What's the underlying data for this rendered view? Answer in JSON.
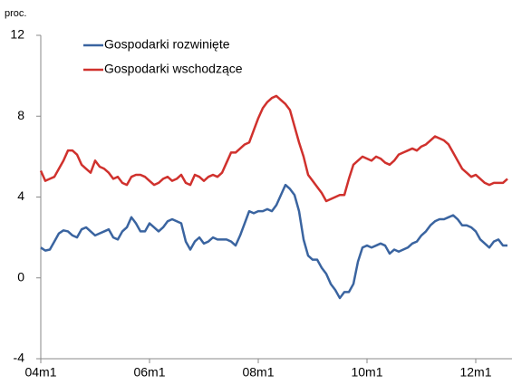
{
  "chart_data": {
    "type": "line",
    "y_unit_label": "proc.",
    "categories": [
      "04m1",
      null,
      null,
      null,
      null,
      null,
      null,
      null,
      null,
      null,
      null,
      null,
      null,
      null,
      null,
      null,
      null,
      null,
      null,
      null,
      null,
      null,
      null,
      null,
      "06m1",
      null,
      null,
      null,
      null,
      null,
      null,
      null,
      null,
      null,
      null,
      null,
      null,
      null,
      null,
      null,
      null,
      null,
      null,
      null,
      null,
      null,
      null,
      null,
      "08m1",
      null,
      null,
      null,
      null,
      null,
      null,
      null,
      null,
      null,
      null,
      null,
      null,
      null,
      null,
      null,
      null,
      null,
      null,
      null,
      null,
      null,
      null,
      null,
      "10m1",
      null,
      null,
      null,
      null,
      null,
      null,
      null,
      null,
      null,
      null,
      null,
      null,
      null,
      null,
      null,
      null,
      null,
      null,
      null,
      null,
      null,
      null,
      null,
      "12m1",
      null,
      null,
      null,
      null,
      null,
      null,
      null
    ],
    "series": [
      {
        "name": "Gospodarki rozwinięte",
        "color": "#3a64a0",
        "values": [
          1.5,
          1.35,
          1.4,
          1.8,
          2.2,
          2.35,
          2.3,
          2.1,
          2.0,
          2.4,
          2.5,
          2.3,
          2.1,
          2.2,
          2.3,
          2.4,
          2.0,
          1.9,
          2.3,
          2.5,
          3.0,
          2.7,
          2.3,
          2.3,
          2.7,
          2.5,
          2.3,
          2.5,
          2.8,
          2.9,
          2.8,
          2.7,
          1.8,
          1.4,
          1.8,
          2.0,
          1.7,
          1.8,
          2.0,
          1.9,
          1.9,
          1.9,
          1.8,
          1.6,
          2.1,
          2.7,
          3.3,
          3.2,
          3.3,
          3.3,
          3.4,
          3.3,
          3.6,
          4.1,
          4.6,
          4.4,
          4.1,
          3.3,
          1.9,
          1.1,
          0.9,
          0.9,
          0.5,
          0.2,
          -0.3,
          -0.6,
          -1.0,
          -0.7,
          -0.7,
          -0.3,
          0.8,
          1.5,
          1.6,
          1.5,
          1.6,
          1.7,
          1.6,
          1.2,
          1.4,
          1.3,
          1.4,
          1.5,
          1.7,
          1.8,
          2.1,
          2.3,
          2.6,
          2.8,
          2.9,
          2.9,
          3.0,
          3.1,
          2.9,
          2.6,
          2.6,
          2.5,
          2.3,
          1.9,
          1.7,
          1.5,
          1.8,
          1.9,
          1.6,
          1.6
        ]
      },
      {
        "name": "Gospodarki wschodzące",
        "color": "#d0312d",
        "values": [
          5.3,
          4.8,
          4.9,
          5.0,
          5.4,
          5.8,
          6.3,
          6.3,
          6.1,
          5.6,
          5.4,
          5.2,
          5.8,
          5.5,
          5.4,
          5.2,
          4.9,
          5.0,
          4.7,
          4.6,
          5.0,
          5.1,
          5.1,
          5.0,
          4.8,
          4.6,
          4.7,
          4.9,
          5.0,
          4.8,
          4.9,
          5.1,
          4.7,
          4.6,
          5.1,
          5.0,
          4.8,
          5.0,
          5.1,
          5.0,
          5.2,
          5.7,
          6.2,
          6.2,
          6.4,
          6.6,
          6.7,
          7.3,
          7.9,
          8.4,
          8.7,
          8.9,
          9.0,
          8.8,
          8.6,
          8.3,
          7.5,
          6.7,
          6.0,
          5.1,
          4.8,
          4.5,
          4.2,
          3.8,
          3.9,
          4.0,
          4.1,
          4.1,
          4.9,
          5.6,
          5.8,
          6.0,
          5.9,
          5.8,
          6.0,
          5.9,
          5.7,
          5.6,
          5.8,
          6.1,
          6.2,
          6.3,
          6.4,
          6.3,
          6.5,
          6.6,
          6.8,
          7.0,
          6.9,
          6.8,
          6.6,
          6.2,
          5.8,
          5.4,
          5.2,
          5.0,
          5.1,
          4.9,
          4.7,
          4.6,
          4.7,
          4.7,
          4.7,
          4.9
        ]
      }
    ],
    "ylim": [
      -4,
      12
    ],
    "yticks": [
      -4,
      0,
      4,
      8,
      12
    ],
    "grid": false,
    "legend": "top-left"
  }
}
